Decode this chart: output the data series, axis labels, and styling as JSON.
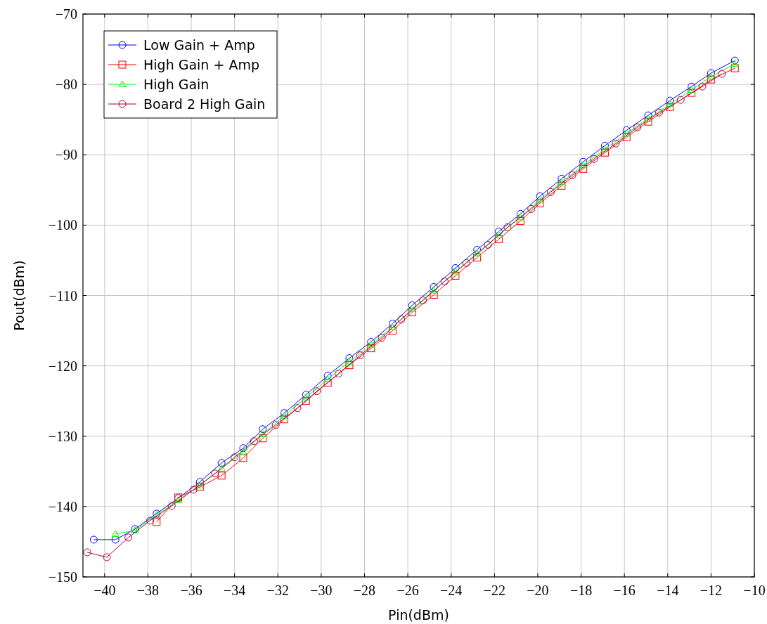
{
  "chart_data": {
    "type": "line",
    "xlabel": "Pin(dBm)",
    "ylabel": "Pout(dBm)",
    "xlim": [
      -41,
      -10
    ],
    "ylim": [
      -150,
      -70
    ],
    "xticks": [
      {
        "value": -40,
        "label": "−40"
      },
      {
        "value": -38,
        "label": "−38"
      },
      {
        "value": -36,
        "label": "−36"
      },
      {
        "value": -34,
        "label": "−34"
      },
      {
        "value": -32,
        "label": "−32"
      },
      {
        "value": -30,
        "label": "−30"
      },
      {
        "value": -28,
        "label": "−28"
      },
      {
        "value": -26,
        "label": "−26"
      },
      {
        "value": -24,
        "label": "−24"
      },
      {
        "value": -22,
        "label": "−22"
      },
      {
        "value": -20,
        "label": "−20"
      },
      {
        "value": -18,
        "label": "−18"
      },
      {
        "value": -16,
        "label": "−16"
      },
      {
        "value": -14,
        "label": "−14"
      },
      {
        "value": -12,
        "label": "−12"
      },
      {
        "value": -10,
        "label": "−10"
      }
    ],
    "yticks": [
      {
        "value": -150,
        "label": "−150"
      },
      {
        "value": -140,
        "label": "−140"
      },
      {
        "value": -130,
        "label": "−130"
      },
      {
        "value": -120,
        "label": "−120"
      },
      {
        "value": -110,
        "label": "−110"
      },
      {
        "value": -100,
        "label": "−100"
      },
      {
        "value": -90,
        "label": "−90"
      },
      {
        "value": -80,
        "label": "−80"
      },
      {
        "value": -70,
        "label": "−70"
      }
    ],
    "grid": true,
    "legend": "top left",
    "line_style": "solid",
    "series": [
      {
        "name": "Low Gain + Amp",
        "color": "#0000ff",
        "marker": "circle",
        "x": [
          -40.5,
          -39.5,
          -38.6,
          -37.6,
          -36.6,
          -35.6,
          -34.6,
          -33.6,
          -32.7,
          -31.7,
          -30.7,
          -29.7,
          -28.7,
          -27.7,
          -26.7,
          -25.8,
          -24.8,
          -23.8,
          -22.8,
          -21.8,
          -20.8,
          -19.9,
          -18.9,
          -17.9,
          -16.9,
          -15.9,
          -14.9,
          -13.9,
          -12.9,
          -12.0,
          -10.9
        ],
        "values": [
          -144.7,
          -144.7,
          -143.2,
          -141,
          -138.8,
          -136.5,
          -133.8,
          -131.7,
          -129,
          -126.7,
          -124.1,
          -121.4,
          -118.9,
          -116.6,
          -114,
          -111.4,
          -108.8,
          -106.1,
          -103.5,
          -100.9,
          -98.4,
          -95.9,
          -93.4,
          -91,
          -88.7,
          -86.5,
          -84.4,
          -82.3,
          -80.3,
          -78.4,
          -76.6
        ]
      },
      {
        "name": "High Gain + Amp",
        "color": "#ff0000",
        "marker": "square",
        "x": [
          -37.6,
          -36.6,
          -35.6,
          -34.6,
          -33.6,
          -32.7,
          -31.7,
          -30.7,
          -29.7,
          -28.7,
          -27.7,
          -26.7,
          -25.8,
          -24.8,
          -23.8,
          -22.8,
          -21.8,
          -20.8,
          -19.9,
          -18.9,
          -17.9,
          -16.9,
          -15.9,
          -14.9,
          -13.9,
          -12.9,
          -12.0,
          -10.9
        ],
        "values": [
          -142.2,
          -138.7,
          -137.2,
          -135.6,
          -133.1,
          -130.3,
          -127.6,
          -125,
          -122.4,
          -119.9,
          -117.5,
          -115,
          -112.4,
          -109.9,
          -107.2,
          -104.6,
          -102,
          -99.4,
          -96.9,
          -94.4,
          -92,
          -89.7,
          -87.5,
          -85.3,
          -83.2,
          -81.2,
          -79.3,
          -77.7
        ]
      },
      {
        "name": "High Gain",
        "color": "#00ff00",
        "marker": "triangle",
        "x": [
          -39.5,
          -38.6,
          -37.6,
          -36.6,
          -35.6,
          -34.6,
          -33.6,
          -32.7,
          -31.7,
          -30.7,
          -29.7,
          -28.7,
          -27.7,
          -26.7,
          -25.8,
          -24.8,
          -23.8,
          -22.8,
          -21.8,
          -20.8,
          -19.9,
          -18.9,
          -17.9,
          -16.9,
          -15.9,
          -14.9,
          -13.9,
          -12.9,
          -12.0,
          -10.9
        ],
        "values": [
          -143.9,
          -143.4,
          -141.2,
          -139.1,
          -137,
          -134.6,
          -132.2,
          -129.7,
          -127.1,
          -124.5,
          -121.9,
          -119.4,
          -117,
          -114.5,
          -111.9,
          -109.3,
          -106.6,
          -104,
          -101.4,
          -98.9,
          -96.4,
          -93.9,
          -91.5,
          -89.2,
          -87,
          -84.9,
          -82.8,
          -80.8,
          -78.9,
          -77.1
        ]
      },
      {
        "name": "Board 2 High Gain",
        "color": "#b00040",
        "marker": "circle",
        "x": [
          -40.8,
          -39.9,
          -38.9,
          -37.9,
          -36.9,
          -35.9,
          -34.9,
          -34.0,
          -33.1,
          -32.1,
          -31.1,
          -30.2,
          -29.2,
          -28.2,
          -27.2,
          -26.3,
          -25.3,
          -24.3,
          -23.3,
          -22.3,
          -21.4,
          -20.3,
          -19.4,
          -18.4,
          -17.4,
          -16.4,
          -15.4,
          -14.4,
          -13.4,
          -12.4,
          -11.5
        ],
        "values": [
          -146.5,
          -147.2,
          -144.4,
          -142,
          -139.9,
          -137.6,
          -135.3,
          -133,
          -130.7,
          -128.4,
          -126,
          -123.6,
          -121.1,
          -118.5,
          -116,
          -113.4,
          -110.7,
          -108,
          -105.4,
          -102.8,
          -100.3,
          -97.7,
          -95.3,
          -92.9,
          -90.6,
          -88.4,
          -86.1,
          -84,
          -82.2,
          -80.3,
          -78.5
        ]
      }
    ]
  }
}
